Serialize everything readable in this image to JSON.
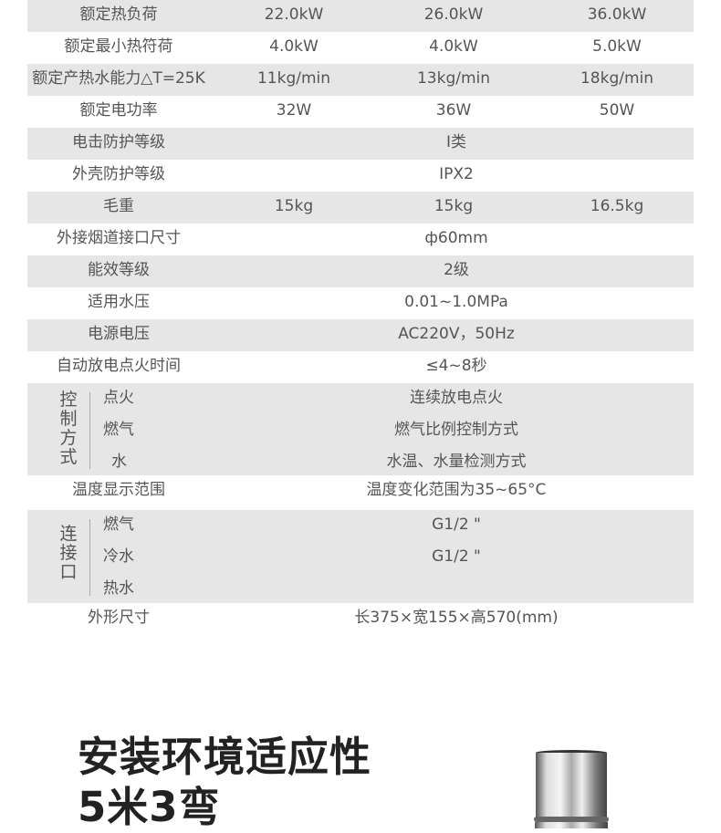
{
  "spec_rows_top": [
    {
      "label": "额定热负荷",
      "values": [
        "22.0kW",
        "26.0kW",
        "36.0kW"
      ],
      "gray": true
    },
    {
      "label": "额定最小热符荷",
      "values": [
        "4.0kW",
        "4.0kW",
        "5.0kW"
      ],
      "gray": false
    },
    {
      "label": "额定产热水能力△T=25K",
      "values": [
        "11kg/min",
        "13kg/min",
        "18kg/min"
      ],
      "gray": true
    },
    {
      "label": "额定电功率",
      "values": [
        "32W",
        "36W",
        "50W"
      ],
      "gray": false
    },
    {
      "label": "电击防护等级",
      "span": "Ⅰ类",
      "gray": true
    },
    {
      "label": "外壳防护等级",
      "span": "IPX2",
      "gray": false
    },
    {
      "label": "毛重",
      "values": [
        "15kg",
        "15kg",
        "16.5kg"
      ],
      "gray": true
    },
    {
      "label": "外接烟道接口尺寸",
      "span": "ф60mm",
      "gray": false
    },
    {
      "label": "能效等级",
      "span": "2级",
      "gray": true
    },
    {
      "label": "适用水压",
      "span": "0.01~1.0MPa",
      "gray": false
    },
    {
      "label": "电源电压",
      "span": "AC220V，50Hz",
      "gray": true
    },
    {
      "label": "自动放电点火时间",
      "span": "≤4~8秒",
      "gray": false
    }
  ],
  "control_group": {
    "label": "控制方式",
    "items": [
      {
        "label": "点火",
        "value": "连续放电点火"
      },
      {
        "label": "燃气",
        "value": "燃气比例控制方式"
      },
      {
        "label": "水",
        "value": "水温、水量检测方式"
      }
    ]
  },
  "temp_row": {
    "label": "温度显示范围",
    "value": "温度变化范围为35~65°C"
  },
  "connection_group": {
    "label": "连接口",
    "items": [
      {
        "label": "燃气",
        "value": "G1/2 \""
      },
      {
        "label": "冷水",
        "value": "G1/2 \""
      },
      {
        "label": "热水",
        "value": ""
      }
    ]
  },
  "dimension_row": {
    "label": "外形尺寸",
    "value": "长375×宽155×高570(mm)"
  },
  "section": {
    "title": "安装环境适应性",
    "subtitle": "5米3弯"
  }
}
